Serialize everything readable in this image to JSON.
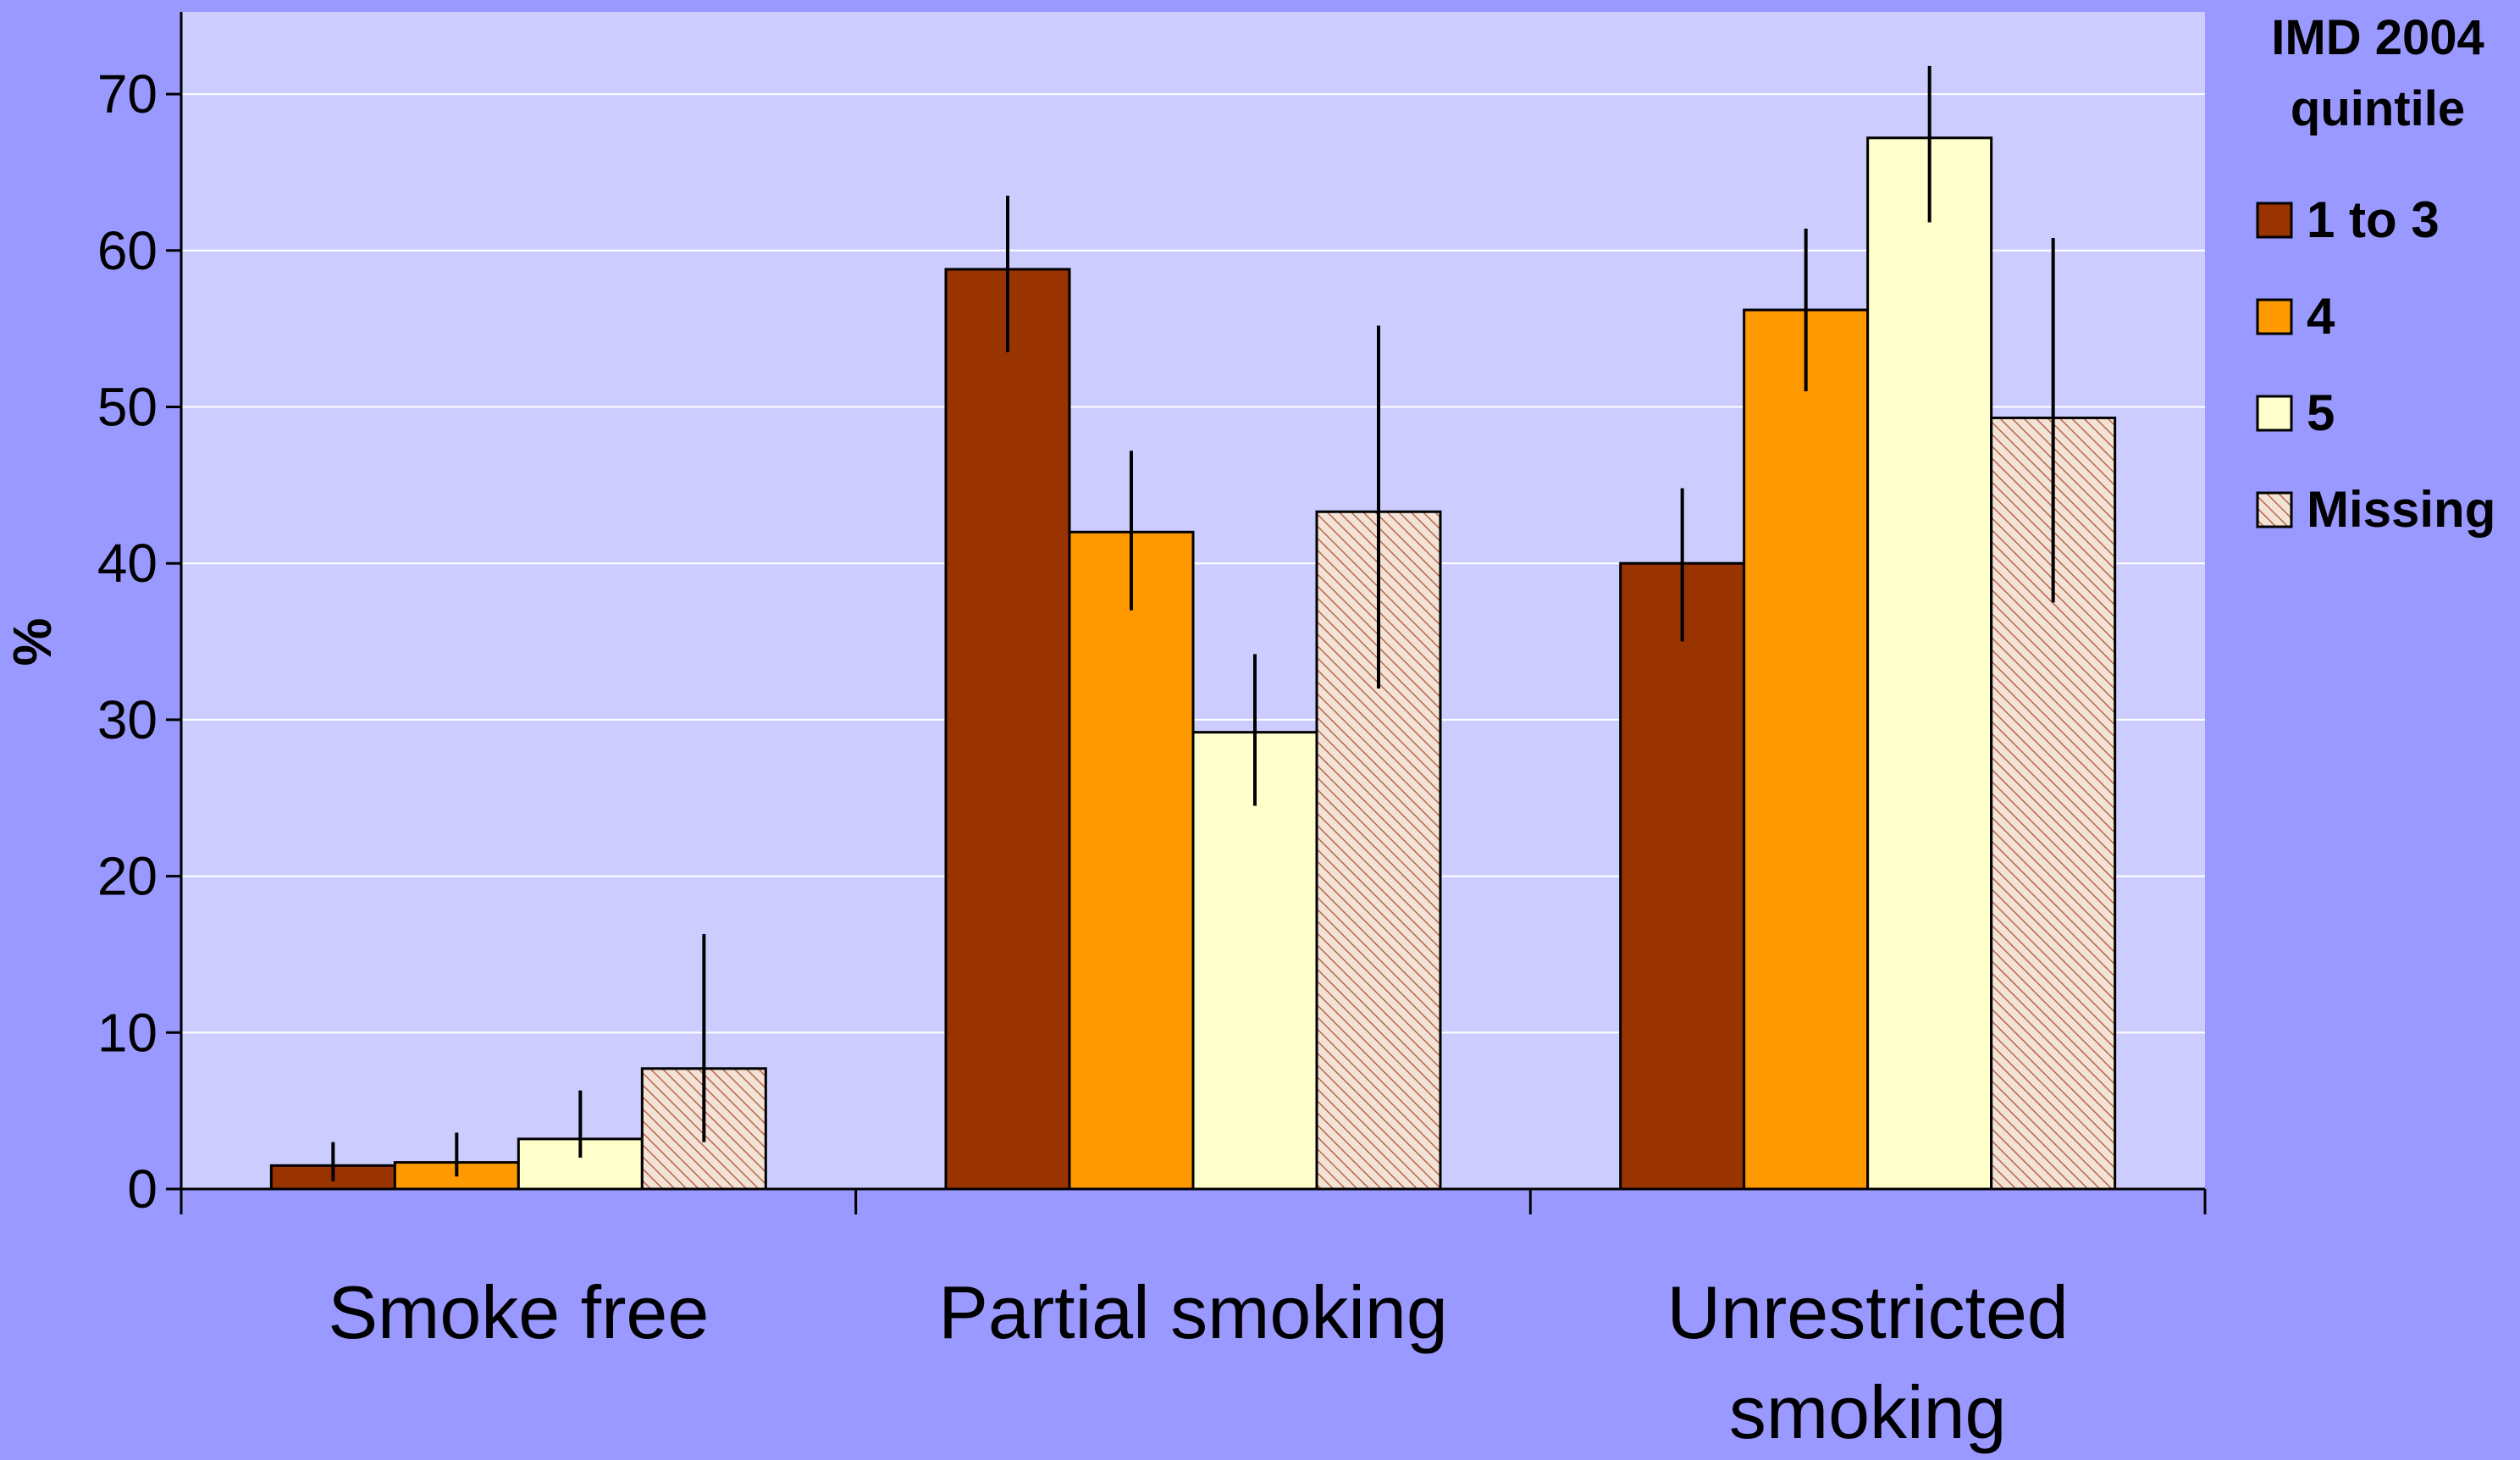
{
  "chart_data": {
    "type": "bar",
    "title": "",
    "xlabel": "",
    "ylabel": "%",
    "ylim": [
      0,
      75
    ],
    "yticks": [
      0,
      10,
      20,
      30,
      40,
      50,
      60,
      70
    ],
    "grid": true,
    "legend_position": "right",
    "categories": [
      "Smoke free",
      "Partial smoking",
      "Unrestricted smoking"
    ],
    "category_lines": [
      [
        "Smoke free"
      ],
      [
        "Partial smoking"
      ],
      [
        "Unrestricted",
        "smoking"
      ]
    ],
    "legend_title_lines": [
      "IMD 2004",
      "quintile"
    ],
    "series": [
      {
        "name": "1 to 3",
        "color": "#993300",
        "pattern": "solid",
        "values": [
          1.5,
          58.8,
          40.0
        ],
        "err_low": [
          0.5,
          53.5,
          35.0
        ],
        "err_high": [
          3.0,
          63.5,
          44.8
        ]
      },
      {
        "name": "4",
        "color": "#ff9900",
        "pattern": "solid",
        "values": [
          1.7,
          42.0,
          56.2
        ],
        "err_low": [
          0.8,
          37.0,
          51.0
        ],
        "err_high": [
          3.6,
          47.2,
          61.4
        ]
      },
      {
        "name": "5",
        "color": "#ffffcc",
        "pattern": "solid",
        "values": [
          3.2,
          29.2,
          67.2
        ],
        "err_low": [
          2.0,
          24.5,
          61.8
        ],
        "err_high": [
          6.3,
          34.2,
          71.8
        ]
      },
      {
        "name": "Missing",
        "color": "#cc9977",
        "pattern": "hatched",
        "values": [
          7.7,
          43.3,
          49.3
        ],
        "err_low": [
          3.0,
          32.0,
          37.5
        ],
        "err_high": [
          16.3,
          55.2,
          60.8
        ]
      }
    ]
  }
}
